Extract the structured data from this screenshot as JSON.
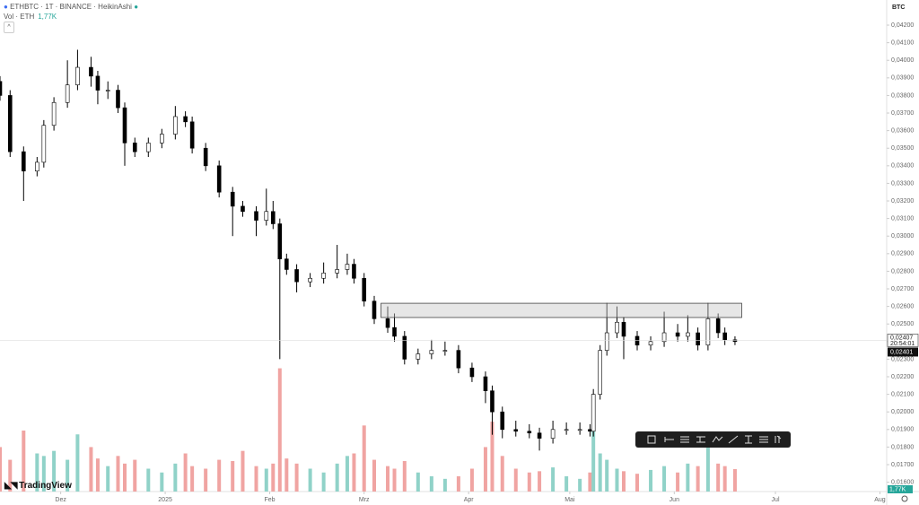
{
  "header": {
    "symbol": "ETHBTC · 1T · BINANCE · HeikinAshi",
    "volume_title": "Vol · ETH",
    "volume_last": "1,77K"
  },
  "logo": "TradingView",
  "chart_data": {
    "type": "candlestick",
    "currency": "BTC",
    "x": [
      -18,
      -15,
      -11,
      -7,
      -5,
      -2,
      2,
      5,
      9,
      11,
      14,
      17,
      19,
      22,
      26,
      30,
      34,
      37,
      39,
      43,
      47,
      51,
      54,
      58,
      61,
      63,
      65,
      67,
      70,
      74,
      78,
      82,
      85,
      87,
      90,
      93,
      97,
      99,
      102,
      106,
      110,
      114,
      118,
      122,
      126,
      128,
      131,
      135,
      139,
      142,
      146,
      150,
      154,
      157,
      158,
      160,
      162,
      165,
      167,
      171,
      175,
      179,
      183,
      186,
      189,
      192,
      195,
      197,
      200
    ],
    "open": [
      0.0388,
      0.038,
      0.0348,
      0.0337,
      0.0342,
      0.0363,
      0.0376,
      0.0386,
      0.0396,
      0.0391,
      0.0383,
      0.0383,
      0.0373,
      0.0353,
      0.0348,
      0.0353,
      0.0358,
      0.0368,
      0.0365,
      0.035,
      0.034,
      0.0325,
      0.0317,
      0.0314,
      0.0309,
      0.0314,
      0.0307,
      0.0287,
      0.0281,
      0.0274,
      0.0276,
      0.0279,
      0.0281,
      0.0284,
      0.0276,
      0.0263,
      0.0253,
      0.0248,
      0.0243,
      0.023,
      0.0233,
      0.0235,
      0.0235,
      0.0225,
      0.022,
      0.0212,
      0.02,
      0.019,
      0.0189,
      0.0188,
      0.0185,
      0.019,
      0.019,
      0.019,
      0.0189,
      0.021,
      0.0235,
      0.0245,
      0.0251,
      0.0243,
      0.0238,
      0.024,
      0.0245,
      0.0243,
      0.0245,
      0.0238,
      0.0253,
      0.0245,
      0.0241
    ],
    "high": [
      0.0391,
      0.0383,
      0.0351,
      0.0345,
      0.0366,
      0.0379,
      0.04,
      0.0406,
      0.0402,
      0.0394,
      0.0388,
      0.0386,
      0.0376,
      0.0356,
      0.0356,
      0.0361,
      0.0374,
      0.0371,
      0.0368,
      0.0353,
      0.0343,
      0.0328,
      0.032,
      0.0317,
      0.0327,
      0.032,
      0.031,
      0.029,
      0.0284,
      0.0279,
      0.0285,
      0.0295,
      0.029,
      0.0287,
      0.0279,
      0.0266,
      0.026,
      0.0256,
      0.0246,
      0.0236,
      0.0241,
      0.024,
      0.0238,
      0.0228,
      0.0223,
      0.0215,
      0.0203,
      0.0195,
      0.0193,
      0.0191,
      0.0195,
      0.0194,
      0.0194,
      0.0193,
      0.0213,
      0.0238,
      0.0262,
      0.026,
      0.0254,
      0.0246,
      0.0243,
      0.0257,
      0.025,
      0.0255,
      0.0248,
      0.0262,
      0.0256,
      0.0248,
      0.0243
    ],
    "low": [
      0.0377,
      0.0345,
      0.032,
      0.0334,
      0.0339,
      0.036,
      0.0373,
      0.0383,
      0.0385,
      0.0375,
      0.0378,
      0.037,
      0.034,
      0.0345,
      0.0345,
      0.035,
      0.0355,
      0.0362,
      0.0347,
      0.0337,
      0.0322,
      0.03,
      0.0311,
      0.03,
      0.0306,
      0.0304,
      0.023,
      0.0278,
      0.0268,
      0.0271,
      0.0273,
      0.0276,
      0.0278,
      0.0273,
      0.026,
      0.025,
      0.0245,
      0.024,
      0.0227,
      0.0227,
      0.023,
      0.0232,
      0.0222,
      0.0217,
      0.0205,
      0.0187,
      0.0185,
      0.0186,
      0.0185,
      0.0178,
      0.0182,
      0.0187,
      0.0187,
      0.0186,
      0.0186,
      0.0207,
      0.0232,
      0.0242,
      0.023,
      0.0235,
      0.0235,
      0.0237,
      0.024,
      0.024,
      0.0235,
      0.0235,
      0.0242,
      0.0238,
      0.0238
    ],
    "close": [
      0.038,
      0.0348,
      0.0337,
      0.0342,
      0.0363,
      0.0376,
      0.0386,
      0.0396,
      0.0391,
      0.0383,
      0.0383,
      0.0373,
      0.0353,
      0.0348,
      0.0353,
      0.0358,
      0.0368,
      0.0365,
      0.035,
      0.034,
      0.0325,
      0.0317,
      0.0314,
      0.0309,
      0.0314,
      0.0307,
      0.0287,
      0.0281,
      0.0274,
      0.0276,
      0.0279,
      0.0281,
      0.0284,
      0.0276,
      0.0263,
      0.0253,
      0.0248,
      0.0243,
      0.023,
      0.0233,
      0.0235,
      0.0235,
      0.0225,
      0.022,
      0.0212,
      0.02,
      0.019,
      0.0189,
      0.0188,
      0.0185,
      0.019,
      0.019,
      0.019,
      0.0189,
      0.021,
      0.0235,
      0.0245,
      0.0251,
      0.0243,
      0.0238,
      0.024,
      0.0245,
      0.0243,
      0.0245,
      0.0238,
      0.0253,
      0.0245,
      0.0241,
      0.024
    ],
    "volume": [
      3.5,
      2.5,
      4.8,
      3.0,
      2.8,
      3.2,
      2.5,
      4.5,
      3.5,
      2.6,
      2.0,
      2.8,
      2.2,
      2.5,
      1.8,
      1.5,
      2.2,
      3.0,
      2.0,
      1.8,
      2.5,
      2.4,
      3.2,
      2.0,
      1.8,
      2.2,
      9.7,
      2.6,
      2.2,
      1.8,
      1.5,
      2.2,
      2.8,
      3.0,
      5.2,
      2.5,
      2.0,
      1.8,
      2.4,
      1.5,
      1.2,
      1.0,
      1.2,
      1.8,
      3.5,
      5.5,
      2.8,
      1.8,
      1.5,
      1.6,
      1.9,
      1.2,
      1.0,
      1.5,
      4.8,
      3.0,
      2.5,
      1.8,
      1.6,
      1.4,
      1.7,
      2.0,
      1.5,
      2.2,
      2.0,
      3.5,
      2.2,
      2.0,
      1.77
    ],
    "up_color": "#ffffff",
    "down_color": "#000000",
    "wick_color": "#000000",
    "volume_up_color": "#90d2c8",
    "volume_down_color": "#f0a4a2",
    "xlim": [
      -18,
      245
    ],
    "xticks": [
      {
        "value": 0,
        "label": "Dez"
      },
      {
        "value": 31,
        "label": "2025"
      },
      {
        "value": 62,
        "label": "Feb"
      },
      {
        "value": 90,
        "label": "Mrz"
      },
      {
        "value": 121,
        "label": "Apr"
      },
      {
        "value": 151,
        "label": "Mai"
      },
      {
        "value": 182,
        "label": "Jun"
      },
      {
        "value": 212,
        "label": "Jul"
      },
      {
        "value": 243,
        "label": "Aug"
      }
    ],
    "ylim": [
      0.01547,
      0.04343
    ],
    "yticks": [
      {
        "value": 0.016,
        "label": "0,01600"
      },
      {
        "value": 0.017,
        "label": "0,01700"
      },
      {
        "value": 0.018,
        "label": "0,01800"
      },
      {
        "value": 0.019,
        "label": "0,01900"
      },
      {
        "value": 0.02,
        "label": "0,02000"
      },
      {
        "value": 0.021,
        "label": "0,02100"
      },
      {
        "value": 0.022,
        "label": "0,02200"
      },
      {
        "value": 0.023,
        "label": "0,02300"
      },
      {
        "value": 0.024,
        "label": "0,02400"
      },
      {
        "value": 0.025,
        "label": "0,02500"
      },
      {
        "value": 0.026,
        "label": "0,02600"
      },
      {
        "value": 0.027,
        "label": "0,02700"
      },
      {
        "value": 0.028,
        "label": "0,02800"
      },
      {
        "value": 0.029,
        "label": "0,02900"
      },
      {
        "value": 0.03,
        "label": "0,03000"
      },
      {
        "value": 0.031,
        "label": "0,03100"
      },
      {
        "value": 0.032,
        "label": "0,03200"
      },
      {
        "value": 0.033,
        "label": "0,03300"
      },
      {
        "value": 0.034,
        "label": "0,03400"
      },
      {
        "value": 0.035,
        "label": "0,03500"
      },
      {
        "value": 0.036,
        "label": "0,03600"
      },
      {
        "value": 0.037,
        "label": "0,03700"
      },
      {
        "value": 0.038,
        "label": "0,03800"
      },
      {
        "value": 0.039,
        "label": "0,03900"
      },
      {
        "value": 0.04,
        "label": "0,04000"
      },
      {
        "value": 0.041,
        "label": "0,04100"
      },
      {
        "value": 0.042,
        "label": "0,04200"
      }
    ],
    "volume_lim": [
      0,
      12
    ],
    "zone": {
      "x": [
        95,
        202
      ],
      "y": [
        0.02537,
        0.02618
      ]
    },
    "last_price": {
      "value": 0.02407,
      "label": "0,02407"
    },
    "countdown": "20:54:01",
    "crosshair_price": {
      "value": 0.02401,
      "label": "0,02401"
    }
  }
}
